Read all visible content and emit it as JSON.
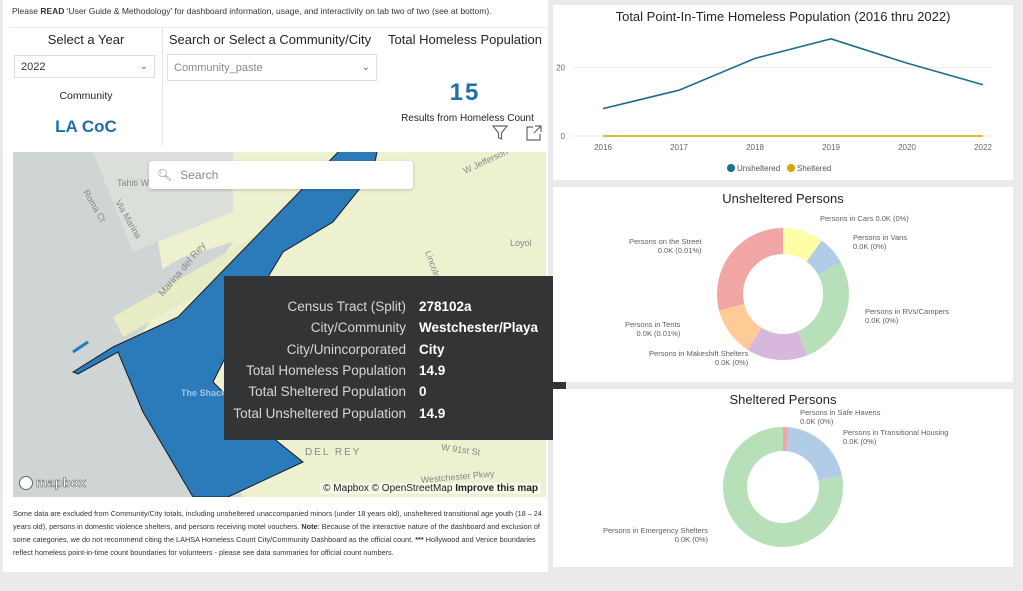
{
  "notice": {
    "pre": "Please ",
    "bold": "READ",
    "post": " 'User Guide & Methodology' for dashboard information, usage, and interactivity on tab two of two (see at bottom)."
  },
  "year_slicer": {
    "title": "Select a Year",
    "value": "2022"
  },
  "community_slicer": {
    "title": "Search or Select a Community/City",
    "placeholder": "Community_paste"
  },
  "community_card": {
    "label": "Community",
    "value": "LA CoC"
  },
  "total_card": {
    "title": "Total Homeless Population",
    "value": "15",
    "caption": "Results from Homeless Count"
  },
  "visual_header": {
    "filter_icon": "filter-icon",
    "focus_icon": "focus-mode-icon"
  },
  "map": {
    "search_placeholder": "Search",
    "labels": [
      "Tahiti Way",
      "Roma Ct",
      "Via Marina",
      "Marina del Rey",
      "W Jefferson",
      "Lincoln",
      "Loyol",
      "The Shack",
      "DEL REY",
      "W 91st St",
      "Westchester Pkwy"
    ],
    "logo": "mapbox",
    "attribution": "© Mapbox © OpenStreetMap",
    "improve_link": "Improve this map",
    "tooltip": [
      {
        "key": "Census Tract (Split)",
        "value": "278102a"
      },
      {
        "key": "City/Community",
        "value": "Westchester/Playa"
      },
      {
        "key": "City/Unincorporated",
        "value": "City"
      },
      {
        "key": "Total Homeless Population",
        "value": "14.9"
      },
      {
        "key": "Total Sheltered Population",
        "value": "0"
      },
      {
        "key": "Total Unsheltered Population",
        "value": "14.9"
      }
    ]
  },
  "footnote": {
    "part1": "Some data are excluded from Community/City totals, including unsheltered unaccompanied minors (under 18 years old), unsheltered transitional age youth (18 – 24 years old), persons in domestic violence shelters, and persons receiving motel vouchers. ",
    "note_label": "Note",
    "part2": ": Because of the interactive nature of the dashboard and exclusion of some categories, we do not recommend citing the LAHSA Homeless Count City/Community Dashboard as the official count. ",
    "stars": "***",
    "part3": " Hollywood and Venice boundaries reflect homeless point-in-time count boundaries for volunteers - please see data summaries for official count numbers."
  },
  "chart_data": [
    {
      "type": "line",
      "title": "Total Point-In-Time Homeless Population (2016 thru 2022)",
      "categories": [
        "2016",
        "2017",
        "2018",
        "2019",
        "2020",
        "2022"
      ],
      "series": [
        {
          "name": "Unsheltered",
          "color": "#118dff",
          "stroke": "#1a6e8e",
          "values": [
            8,
            13.4,
            22.7,
            28.4,
            21.3,
            15
          ]
        },
        {
          "name": "Sheltered",
          "color": "#d4a900",
          "values": [
            0,
            0,
            0,
            0,
            0,
            0
          ]
        }
      ],
      "yticks": [
        0,
        20
      ],
      "ylim": [
        0,
        31
      ],
      "grid": true,
      "legend": "bottom-center"
    },
    {
      "type": "pie",
      "title": "Unsheltered Persons",
      "slices": [
        {
          "name": "Persons in Cars",
          "label": "0.0K (0%)",
          "share": 10,
          "color": "#fdfda6"
        },
        {
          "name": "Persons in Vans",
          "label": "0.0K (0%)",
          "share": 7,
          "color": "#b0cce6"
        },
        {
          "name": "Persons in RVs/Campers",
          "label": "0.0K (0%)",
          "share": 27,
          "color": "#b8e0b8"
        },
        {
          "name": "Persons in Makeshift Shelters",
          "label": "0.0K (0%)",
          "share": 15,
          "color": "#d7b8dc"
        },
        {
          "name": "Persons in Tents",
          "label": "0.0K (0.01%)",
          "share": 12,
          "color": "#fecb96"
        },
        {
          "name": "Persons on the Street",
          "label": "0.0K (0.01%)",
          "share": 29,
          "color": "#f2a5a5"
        }
      ]
    },
    {
      "type": "pie",
      "title": "Sheltered Persons",
      "slices": [
        {
          "name": "Persons in Safe Havens",
          "label": "0.0K (0%)",
          "share": 1.5,
          "color": "#f2a5a5"
        },
        {
          "name": "Persons in Transitional Housing",
          "label": "0.0K (0%)",
          "share": 20.5,
          "color": "#b0cce6"
        },
        {
          "name": "Persons in Emergency Shelters",
          "label": "0.0K (0%)",
          "share": 78,
          "color": "#b8e0b8"
        }
      ]
    }
  ]
}
